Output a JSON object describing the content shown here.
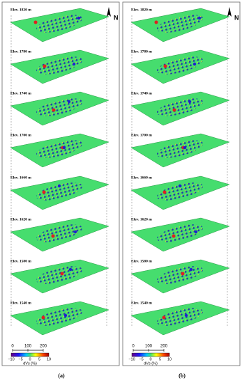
{
  "figure": {
    "compass": "N",
    "panels": [
      {
        "label": "(a)",
        "slices": [
          "Elev. 1820 m",
          "Elev. 1780 m",
          "Elev. 1740 m",
          "Elev. 1700 m",
          "Elev. 1660 m",
          "Elev. 1620 m",
          "Elev. 1580 m",
          "Elev. 1540 m"
        ],
        "scale_ticks": [
          "0",
          "100",
          "200"
        ],
        "colorbar_ticks": [
          "−10",
          "−5",
          "0",
          "5",
          "10"
        ],
        "colorbar_label": "dVs (%)"
      },
      {
        "label": "(b)",
        "slices": [
          "Elev. 1820 m",
          "Elev. 1780 m",
          "Elev. 1740 m",
          "Elev. 1700 m",
          "Elev. 1660 m",
          "Elev. 1620 m",
          "Elev. 1580 m",
          "Elev. 1540 m"
        ],
        "scale_ticks": [
          "0",
          "100",
          "200"
        ],
        "colorbar_ticks": [
          "−10",
          "−5",
          "0",
          "5",
          "10"
        ],
        "colorbar_label": "dVs (%)"
      }
    ]
  }
}
